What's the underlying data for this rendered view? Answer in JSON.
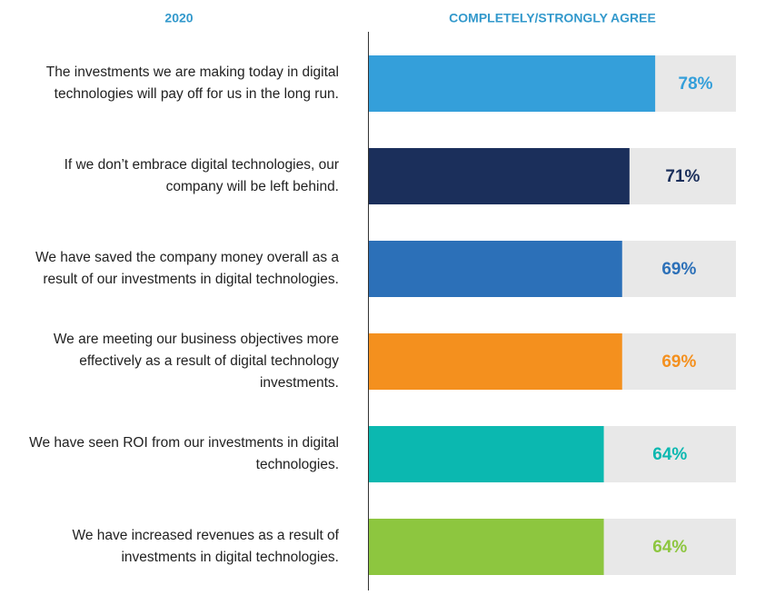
{
  "chart_data": {
    "type": "bar",
    "orientation": "horizontal",
    "category_header": "2020",
    "value_header": "COMPLETELY/STRONGLY AGREE",
    "categories": [
      "The investments we are making today in digital technologies will pay off for us in the long run.",
      "If we don’t embrace digital technologies, our company will be left behind.",
      "We have saved the company money overall as a result of our investments in digital technologies.",
      "We are meeting our business objectives more effectively as a result of digital technology investments.",
      "We have seen ROI from our investments in digital technologies.",
      "We have increased revenues as a result of investments in digital technologies."
    ],
    "values": [
      78,
      71,
      69,
      69,
      64,
      64
    ],
    "value_labels": [
      "78%",
      "71%",
      "69%",
      "69%",
      "64%",
      "64%"
    ],
    "colors": [
      "#349fda",
      "#1b2f5b",
      "#2c70b8",
      "#f4901e",
      "#0bb8b0",
      "#8dc63f"
    ],
    "header_color": "#3399cc",
    "xlim": [
      0,
      100
    ]
  }
}
